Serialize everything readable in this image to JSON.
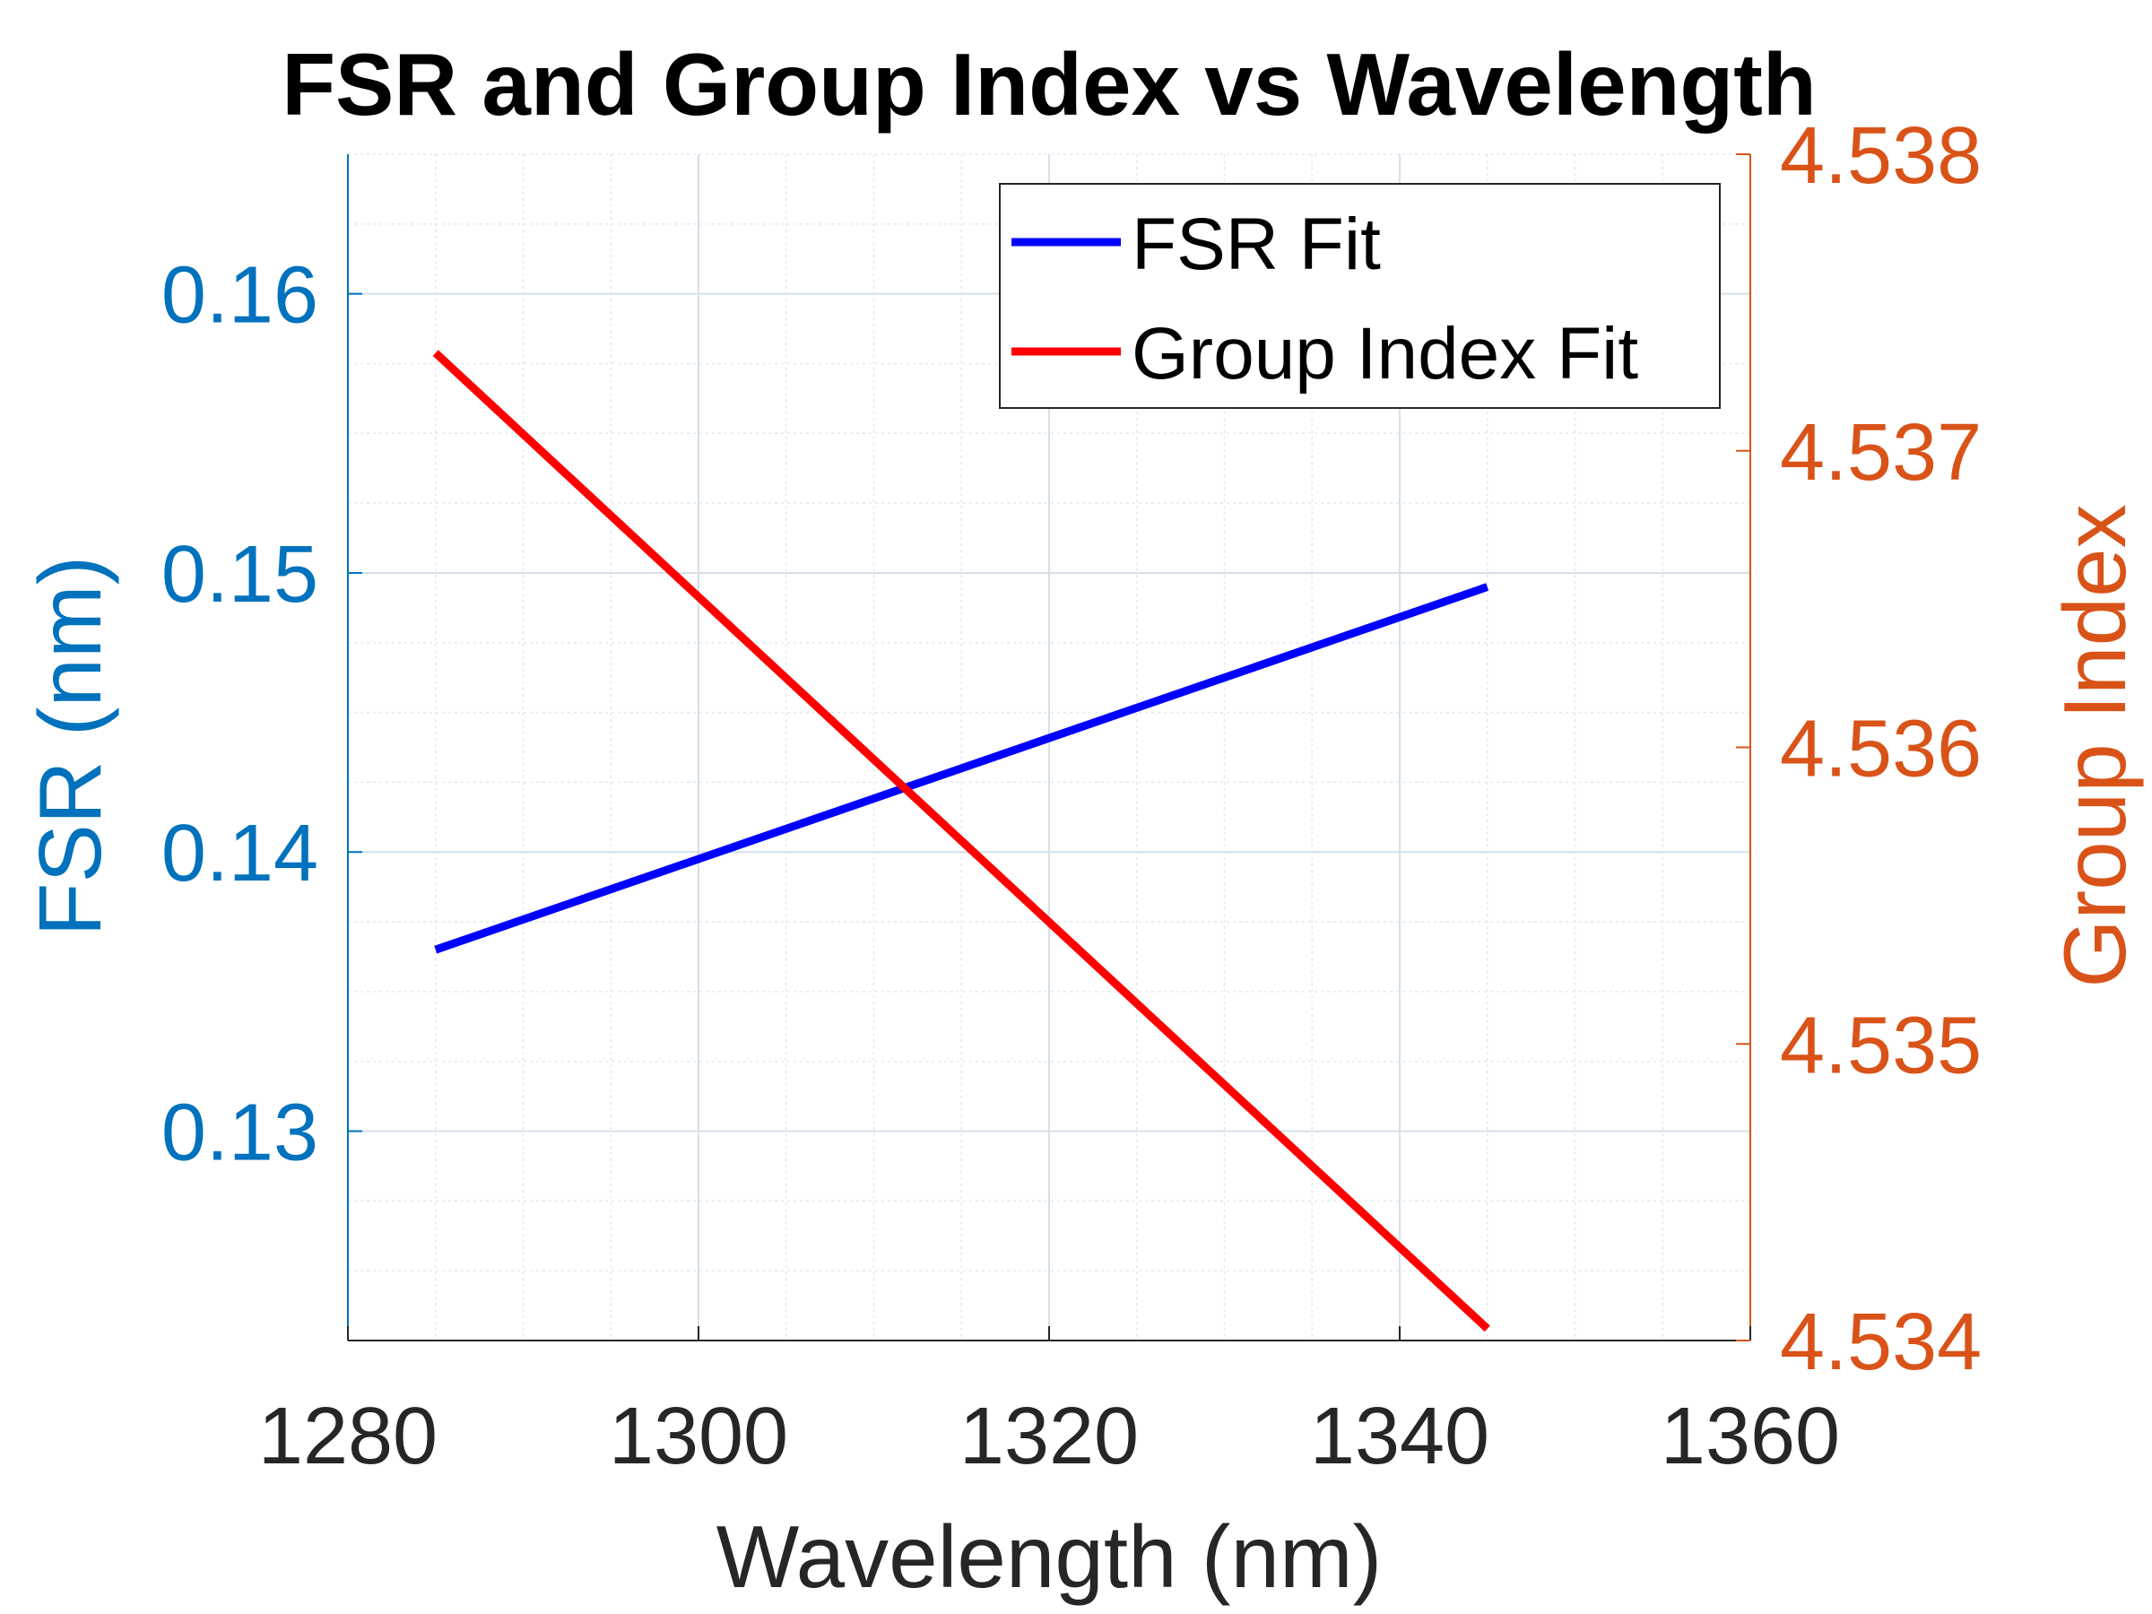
{
  "chart_data": {
    "type": "line",
    "title": "FSR and Group Index vs Wavelength",
    "xlabel": "Wavelength (nm)",
    "ylabel_left": "FSR (nm)",
    "ylabel_right": "Group Index",
    "xlim": [
      1280,
      1360
    ],
    "ylim_left": [
      0.1225,
      0.165
    ],
    "ylim_right": [
      4.534,
      4.538
    ],
    "x_ticks": [
      1280,
      1300,
      1320,
      1340,
      1360
    ],
    "x_tick_labels": [
      "1280",
      "1300",
      "1320",
      "1340",
      "1360"
    ],
    "y_left_ticks": [
      0.13,
      0.14,
      0.15,
      0.16
    ],
    "y_left_tick_labels": [
      "0.13",
      "0.14",
      "0.15",
      "0.16"
    ],
    "y_right_ticks": [
      4.534,
      4.535,
      4.536,
      4.537,
      4.538
    ],
    "y_right_tick_labels": [
      "4.534",
      "4.535",
      "4.536",
      "4.537",
      "4.538"
    ],
    "grid": true,
    "minor_grid": true,
    "legend_position": "top-right",
    "colors": {
      "left_axis": "#0072bd",
      "right_axis": "#d95319",
      "grid": "#dfe9f3"
    },
    "series": [
      {
        "name": "FSR Fit",
        "axis": "left",
        "color": "#0000ff",
        "x": [
          1285,
          1345
        ],
        "y": [
          0.1365,
          0.1495
        ]
      },
      {
        "name": "Group Index Fit",
        "axis": "right",
        "color": "#ff0000",
        "x": [
          1285,
          1345
        ],
        "y": [
          4.53733,
          4.53404
        ]
      }
    ]
  }
}
